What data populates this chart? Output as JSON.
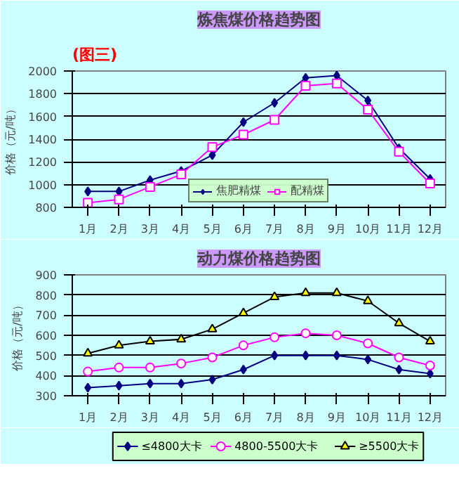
{
  "chart_data": [
    {
      "type": "line",
      "title": "炼焦煤价格趋势图",
      "ylabel": "价格（元/吨）",
      "annotations": [
        "(图三)"
      ],
      "categories": [
        "1月",
        "2月",
        "3月",
        "4月",
        "5月",
        "6月",
        "7月",
        "8月",
        "9月",
        "10月",
        "11月",
        "12月"
      ],
      "ylim": [
        800,
        2000
      ],
      "yticks": [
        800,
        1000,
        1200,
        1400,
        1600,
        1800,
        2000
      ],
      "grid": "y",
      "legend": "bottom center",
      "series": [
        {
          "name": "焦肥精煤",
          "color": "#000080",
          "marker": "diamond",
          "values": [
            940,
            940,
            1040,
            1120,
            1260,
            1550,
            1720,
            1940,
            1960,
            1740,
            1320,
            1050
          ]
        },
        {
          "name": "配精煤",
          "color": "#ff00ff",
          "marker": "square",
          "values": [
            840,
            870,
            980,
            1090,
            1330,
            1440,
            1570,
            1870,
            1890,
            1660,
            1290,
            1010
          ]
        }
      ]
    },
    {
      "type": "line",
      "title": "动力煤价格趋势图",
      "ylabel": "价格（元/吨）",
      "categories": [
        "1月",
        "2月",
        "3月",
        "4月",
        "5月",
        "6月",
        "7月",
        "8月",
        "9月",
        "10月",
        "11月",
        "12月"
      ],
      "ylim": [
        300,
        900
      ],
      "yticks": [
        300,
        400,
        500,
        600,
        700,
        800,
        900
      ],
      "grid": "y",
      "legend": "bottom",
      "series": [
        {
          "name": "≤4800大卡",
          "color": "#000080",
          "marker": "diamond",
          "values": [
            340,
            350,
            360,
            360,
            380,
            430,
            500,
            500,
            500,
            480,
            430,
            410
          ]
        },
        {
          "name": "4800-5500大卡",
          "color": "#ff00ff",
          "marker": "circle",
          "values": [
            420,
            440,
            440,
            460,
            490,
            550,
            590,
            610,
            600,
            560,
            490,
            450
          ]
        },
        {
          "name": "≥5500大卡",
          "color": "#000000",
          "marker": "triangle",
          "values": [
            510,
            550,
            570,
            580,
            630,
            710,
            790,
            810,
            810,
            770,
            660,
            570
          ]
        }
      ]
    }
  ]
}
